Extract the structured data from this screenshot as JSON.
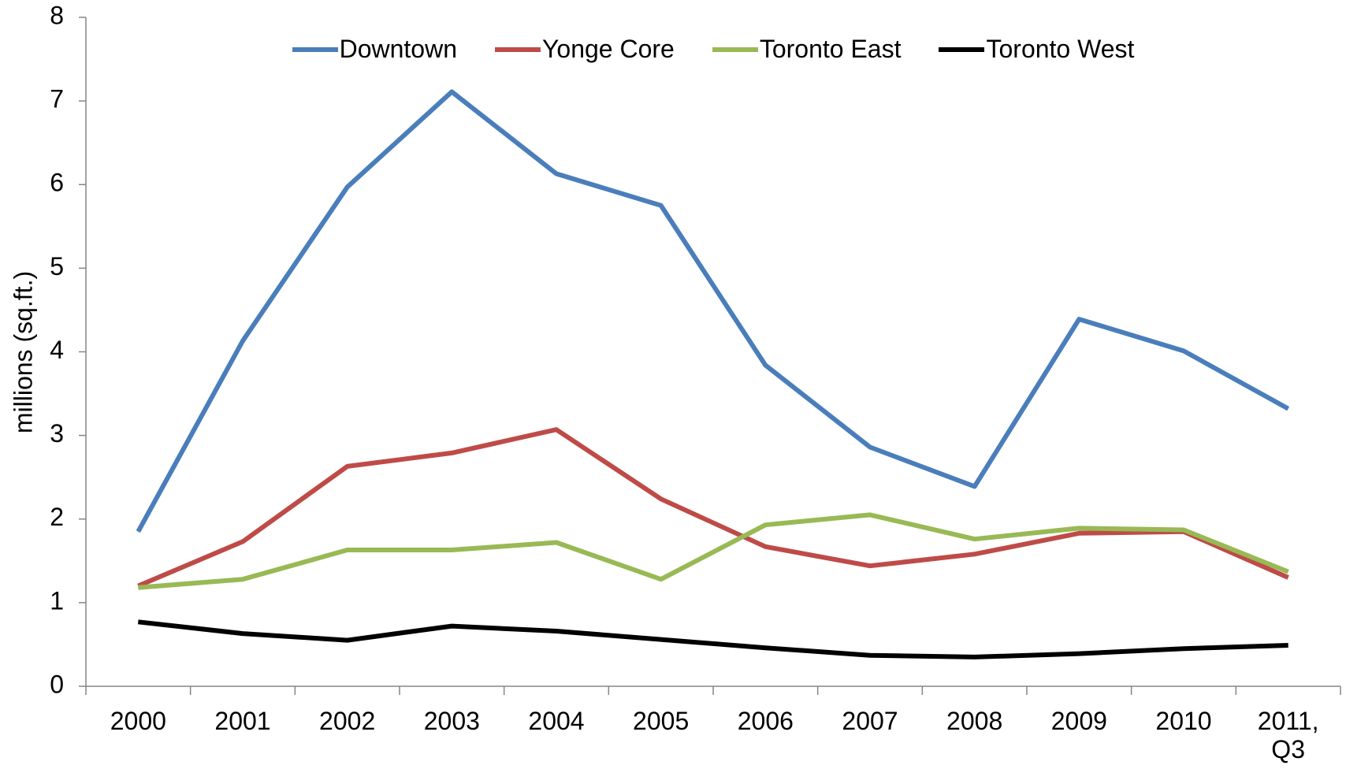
{
  "chart_data": {
    "type": "line",
    "ylabel": "millions (sq.ft.)",
    "categories": [
      "2000",
      "2001",
      "2002",
      "2003",
      "2004",
      "2005",
      "2006",
      "2007",
      "2008",
      "2009",
      "2010",
      "2011, Q3"
    ],
    "series": [
      {
        "name": "Downtown",
        "color": "#4a7ebb",
        "values": [
          1.85,
          4.13,
          5.97,
          7.11,
          6.13,
          5.75,
          3.84,
          2.86,
          2.39,
          4.39,
          4.01,
          3.32
        ]
      },
      {
        "name": "Yonge Core",
        "color": "#be4b48",
        "values": [
          1.2,
          1.73,
          2.63,
          2.79,
          3.07,
          2.24,
          1.67,
          1.44,
          1.58,
          1.83,
          1.85,
          1.3
        ]
      },
      {
        "name": "Toronto East",
        "color": "#98b954",
        "values": [
          1.18,
          1.28,
          1.63,
          1.63,
          1.72,
          1.28,
          1.93,
          2.05,
          1.76,
          1.89,
          1.87,
          1.37
        ]
      },
      {
        "name": "Toronto West",
        "color": "#000000",
        "values": [
          0.77,
          0.63,
          0.55,
          0.72,
          0.66,
          0.56,
          0.46,
          0.37,
          0.35,
          0.39,
          0.45,
          0.49
        ]
      }
    ],
    "ylim": [
      0,
      8
    ],
    "yticks": [
      0,
      1,
      2,
      3,
      4,
      5,
      6,
      7,
      8
    ],
    "grid": false,
    "legend": "top"
  }
}
